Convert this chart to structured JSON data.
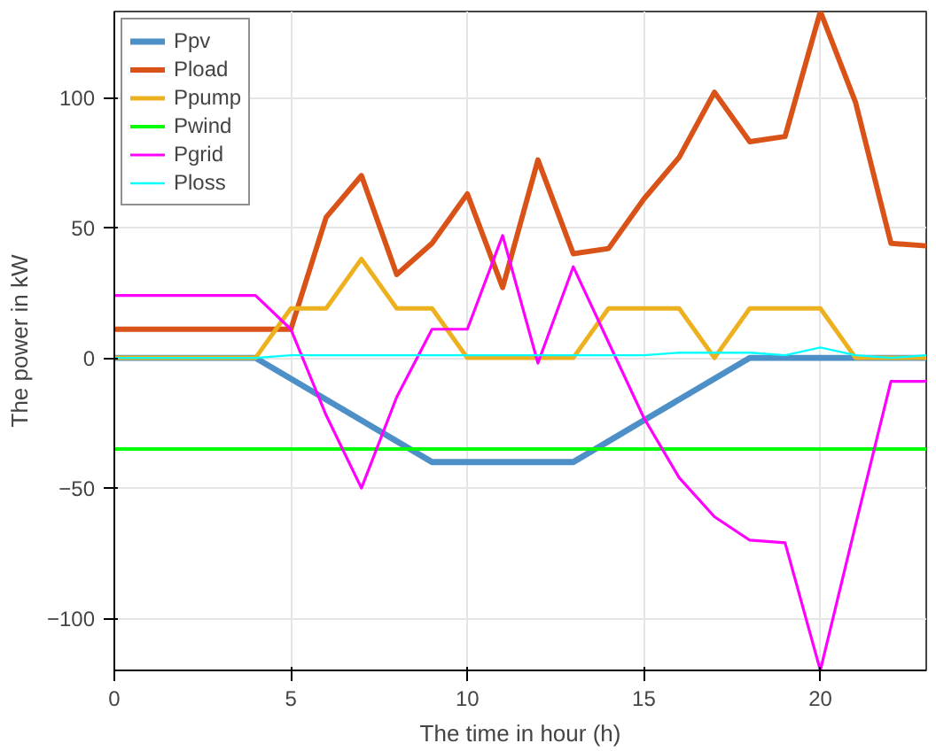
{
  "chart_data": {
    "type": "line",
    "xlabel": "The time in hour (h)",
    "ylabel": "The power in kW",
    "x": [
      0,
      1,
      2,
      3,
      4,
      5,
      6,
      7,
      8,
      9,
      10,
      11,
      12,
      13,
      14,
      15,
      16,
      17,
      18,
      19,
      20,
      21,
      22,
      23
    ],
    "series": [
      {
        "name": "Ppv",
        "color": "#4d8fc7",
        "values": [
          0,
          0,
          0,
          0,
          0,
          -8,
          -16,
          -24,
          -32,
          -40,
          -40,
          -40,
          -40,
          -40,
          -32,
          -24,
          -16,
          -8,
          0,
          0,
          0,
          0,
          0,
          0
        ]
      },
      {
        "name": "Pload",
        "color": "#d95319",
        "values": [
          11,
          11,
          11,
          11,
          11,
          11,
          54,
          70,
          32,
          44,
          63,
          27,
          76,
          40,
          42,
          61,
          77,
          102,
          83,
          85,
          133,
          98,
          44,
          43
        ]
      },
      {
        "name": "Ppump",
        "color": "#edb120",
        "values": [
          0,
          0,
          0,
          0,
          0,
          19,
          19,
          38,
          19,
          19,
          0,
          0,
          0,
          0,
          19,
          19,
          19,
          0,
          19,
          19,
          19,
          0,
          0,
          0
        ]
      },
      {
        "name": "Pwind",
        "color": "#00ff00",
        "values": [
          -35,
          -35,
          -35,
          -35,
          -35,
          -35,
          -35,
          -35,
          -35,
          -35,
          -35,
          -35,
          -35,
          -35,
          -35,
          -35,
          -35,
          -35,
          -35,
          -35,
          -35,
          -35,
          -35,
          -35
        ]
      },
      {
        "name": "Pgrid",
        "color": "#ff00ff",
        "values": [
          24,
          24,
          24,
          24,
          24,
          11,
          -22,
          -50,
          -15,
          11,
          11,
          47,
          -2,
          35,
          6,
          -23,
          -46,
          -61,
          -70,
          -71,
          -120,
          -64,
          -9,
          -9
        ]
      },
      {
        "name": "Ploss",
        "color": "#00ffff",
        "values": [
          0,
          0,
          0,
          0,
          0,
          1,
          1,
          1,
          1,
          1,
          1,
          1,
          1,
          1,
          1,
          1,
          2,
          2,
          2,
          1,
          4,
          1,
          0,
          1
        ]
      }
    ],
    "xlim": [
      0,
      23
    ],
    "ylim": [
      -120,
      133
    ],
    "xticks": [
      0,
      5,
      10,
      15,
      20
    ],
    "yticks": [
      -100,
      -50,
      0,
      50,
      100
    ],
    "grid": true,
    "legend": "top left",
    "marker": "none",
    "line_style": "solid"
  }
}
